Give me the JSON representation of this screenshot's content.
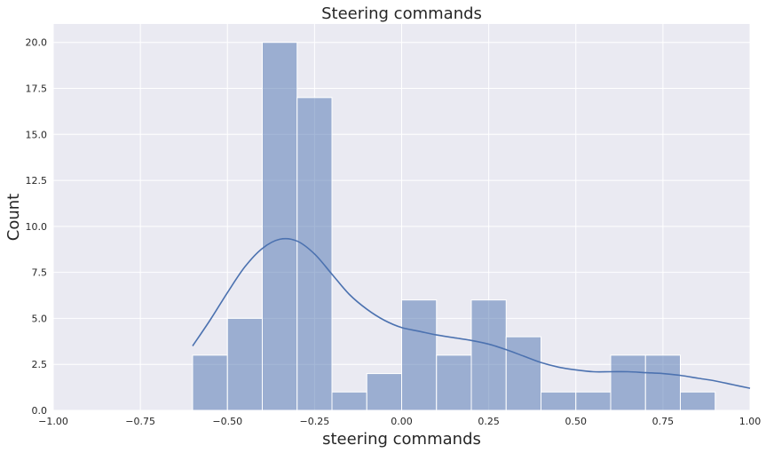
{
  "chart_data": {
    "type": "bar",
    "title": "Steering commands",
    "xlabel": "steering commands",
    "ylabel": "Count",
    "xlim": [
      -1.0,
      1.0
    ],
    "ylim": [
      0.0,
      21.0
    ],
    "xticks": [
      -1.0,
      -0.75,
      -0.5,
      -0.25,
      0.0,
      0.25,
      0.5,
      0.75,
      1.0
    ],
    "xtick_labels": [
      "−1.00",
      "−0.75",
      "−0.50",
      "−0.25",
      "0.00",
      "0.25",
      "0.50",
      "0.75",
      "1.00"
    ],
    "yticks": [
      0.0,
      2.5,
      5.0,
      7.5,
      10.0,
      12.5,
      15.0,
      17.5,
      20.0
    ],
    "ytick_labels": [
      "0.0",
      "2.5",
      "5.0",
      "7.5",
      "10.0",
      "12.5",
      "15.0",
      "17.5",
      "20.0"
    ],
    "bin_width": 0.1,
    "bin_starts": [
      -0.6,
      -0.5,
      -0.4,
      -0.3,
      -0.2,
      -0.1,
      0.0,
      0.1,
      0.2,
      0.3,
      0.4,
      0.5,
      0.6,
      0.7,
      0.8
    ],
    "values": [
      3,
      5,
      20,
      17,
      1,
      2,
      6,
      3,
      6,
      4,
      1,
      1,
      3,
      3,
      1
    ],
    "kde": {
      "x": [
        -0.6,
        -0.55,
        -0.5,
        -0.45,
        -0.4,
        -0.35,
        -0.3,
        -0.25,
        -0.2,
        -0.15,
        -0.1,
        -0.05,
        0.0,
        0.05,
        0.1,
        0.15,
        0.2,
        0.25,
        0.3,
        0.35,
        0.4,
        0.45,
        0.5,
        0.55,
        0.6,
        0.65,
        0.7,
        0.75,
        0.8,
        0.85,
        0.9,
        0.95,
        1.0
      ],
      "y": [
        3.5,
        4.9,
        6.4,
        7.8,
        8.8,
        9.3,
        9.2,
        8.5,
        7.4,
        6.3,
        5.5,
        4.9,
        4.5,
        4.3,
        4.1,
        3.95,
        3.8,
        3.6,
        3.3,
        2.95,
        2.6,
        2.35,
        2.2,
        2.1,
        2.1,
        2.1,
        2.05,
        2.0,
        1.9,
        1.75,
        1.6,
        1.4,
        1.2
      ]
    },
    "grid": true,
    "colors": {
      "background": "#eaeaf2",
      "grid": "#ffffff",
      "bar_fill": "#4c72b0",
      "bar_opacity": 0.5,
      "kde_line": "#4c72b0"
    }
  }
}
